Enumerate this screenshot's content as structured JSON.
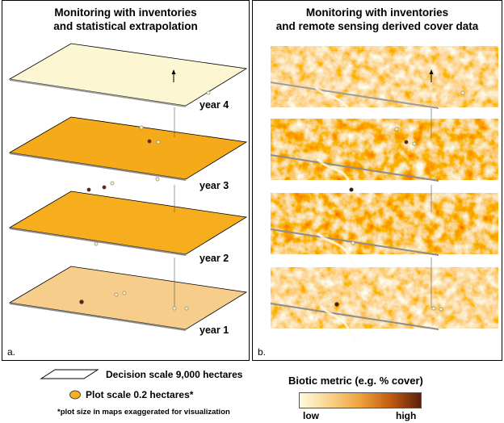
{
  "panel_a": {
    "title_line1": "Monitoring with inventories",
    "title_line2": "and statistical extrapolation",
    "label": "a.",
    "years": [
      {
        "label": "year 4",
        "color": "#fdf6d2"
      },
      {
        "label": "year 3",
        "color": "#f5ab19"
      },
      {
        "label": "year 2",
        "color": "#f6ad1e"
      },
      {
        "label": "year 1",
        "color": "#f6cd8a"
      }
    ]
  },
  "panel_b": {
    "title_line1": "Monitoring with inventories",
    "title_line2": "and remote sensing derived cover data",
    "label": "b."
  },
  "legend": {
    "decision_scale": "Decision scale 9,000 hectares",
    "plot_scale": "Plot scale 0.2 hectares*",
    "footnote": "*plot size in maps exaggerated for visualization",
    "biotic_metric": "Biotic metric (e.g. % cover)",
    "low": "low",
    "high": "high",
    "ramp_colors": [
      "#fffbe0",
      "#f9d28a",
      "#eea23c",
      "#c25b12",
      "#5a200c"
    ],
    "plot_color": "#f5b21e"
  }
}
